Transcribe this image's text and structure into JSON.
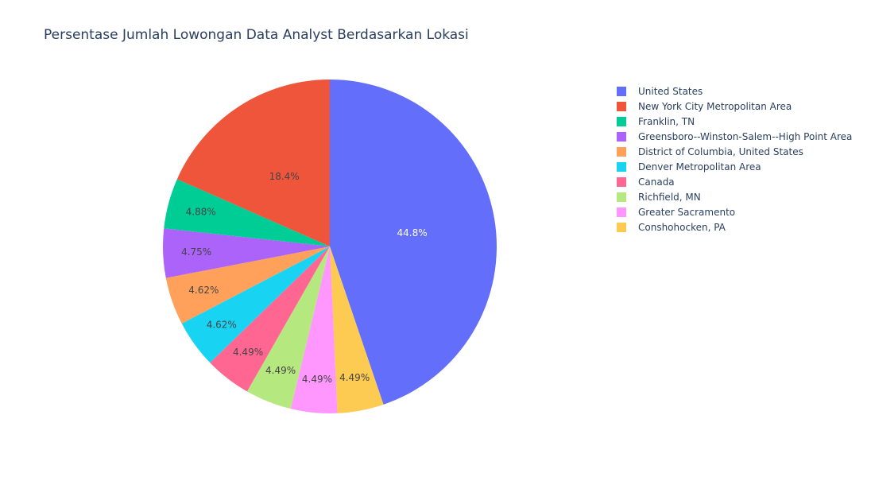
{
  "chart_data": {
    "type": "pie",
    "title": "Persentase Jumlah Lowongan Data Analyst Berdasarkan Lokasi",
    "legend_position": "right",
    "direction": "clockwise",
    "start": "top",
    "slices": [
      {
        "label": "United States",
        "value": 44.8,
        "text": "44.8%",
        "color": "#636efa",
        "text_color": "#ffffff"
      },
      {
        "label": "Conshohocken, PA",
        "value": 4.49,
        "text": "4.49%",
        "color": "#fecb52",
        "text_color": "#444444"
      },
      {
        "label": "Greater Sacramento",
        "value": 4.49,
        "text": "4.49%",
        "color": "#ff97ff",
        "text_color": "#444444"
      },
      {
        "label": "Richfield, MN",
        "value": 4.49,
        "text": "4.49%",
        "color": "#b6e880",
        "text_color": "#444444"
      },
      {
        "label": "Canada",
        "value": 4.49,
        "text": "4.49%",
        "color": "#ff6692",
        "text_color": "#444444"
      },
      {
        "label": "Denver Metropolitan Area",
        "value": 4.62,
        "text": "4.62%",
        "color": "#19d3f3",
        "text_color": "#444444"
      },
      {
        "label": "District of Columbia, United States",
        "value": 4.62,
        "text": "4.62%",
        "color": "#ffa15a",
        "text_color": "#444444"
      },
      {
        "label": "Greensboro--Winston-Salem--High Point Area",
        "value": 4.75,
        "text": "4.75%",
        "color": "#ab63fa",
        "text_color": "#444444"
      },
      {
        "label": "Franklin, TN",
        "value": 4.88,
        "text": "4.88%",
        "color": "#00cc96",
        "text_color": "#444444"
      },
      {
        "label": "New York City Metropolitan Area",
        "value": 18.4,
        "text": "18.4%",
        "color": "#ef553b",
        "text_color": "#444444"
      }
    ],
    "legend": [
      {
        "label": "United States",
        "color": "#636efa"
      },
      {
        "label": "New York City Metropolitan Area",
        "color": "#ef553b"
      },
      {
        "label": "Franklin, TN",
        "color": "#00cc96"
      },
      {
        "label": "Greensboro--Winston-Salem--High Point Area",
        "color": "#ab63fa"
      },
      {
        "label": "District of Columbia, United States",
        "color": "#ffa15a"
      },
      {
        "label": "Denver Metropolitan Area",
        "color": "#19d3f3"
      },
      {
        "label": "Canada",
        "color": "#ff6692"
      },
      {
        "label": "Richfield, MN",
        "color": "#b6e880"
      },
      {
        "label": "Greater Sacramento",
        "color": "#ff97ff"
      },
      {
        "label": "Conshohocken, PA",
        "color": "#fecb52"
      }
    ]
  }
}
